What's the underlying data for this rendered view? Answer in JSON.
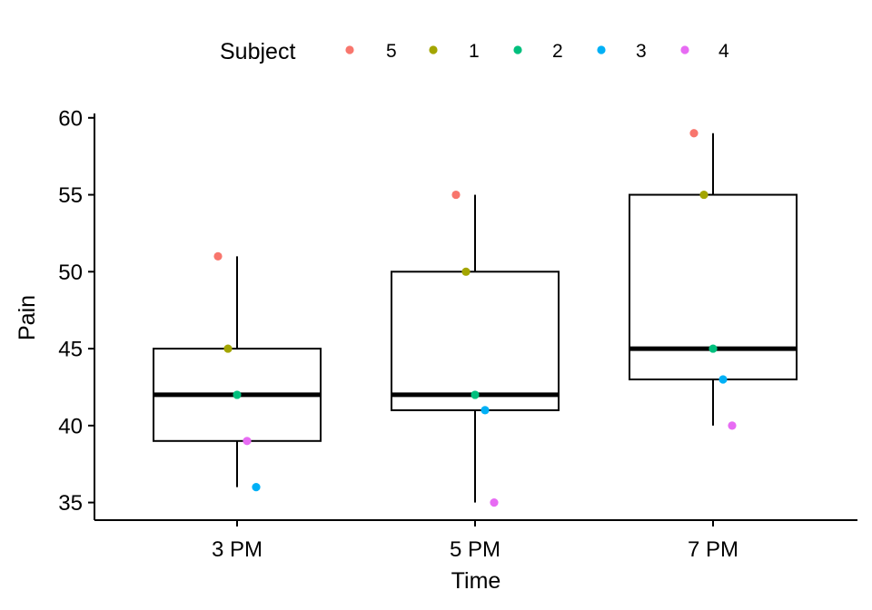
{
  "chart_data": {
    "type": "box",
    "xlabel": "Time",
    "ylabel": "Pain",
    "ylim": [
      33.9,
      60.5
    ],
    "yticks": [
      35,
      40,
      45,
      50,
      55,
      60
    ],
    "grid": false,
    "legend": {
      "title": "Subject",
      "position": "top",
      "entries": [
        {
          "label": "5",
          "color": "#F8766D"
        },
        {
          "label": "1",
          "color": "#A3A500"
        },
        {
          "label": "2",
          "color": "#00BF7D"
        },
        {
          "label": "3",
          "color": "#00B0F6"
        },
        {
          "label": "4",
          "color": "#E76BF3"
        }
      ]
    },
    "categories": [
      "3 PM",
      "5 PM",
      "7 PM"
    ],
    "boxes": [
      {
        "category": "3 PM",
        "whisker_low": 36,
        "q1": 39,
        "median": 42,
        "q3": 45,
        "whisker_high": 51
      },
      {
        "category": "5 PM",
        "whisker_low": 35,
        "q1": 41,
        "median": 42,
        "q3": 50,
        "whisker_high": 55
      },
      {
        "category": "7 PM",
        "whisker_low": 40,
        "q1": 43,
        "median": 45,
        "q3": 55,
        "whisker_high": 59
      }
    ],
    "points": [
      {
        "category": "3 PM",
        "subject": "5",
        "value": 51
      },
      {
        "category": "3 PM",
        "subject": "1",
        "value": 45
      },
      {
        "category": "3 PM",
        "subject": "2",
        "value": 42
      },
      {
        "category": "3 PM",
        "subject": "4",
        "value": 39
      },
      {
        "category": "3 PM",
        "subject": "3",
        "value": 36
      },
      {
        "category": "5 PM",
        "subject": "5",
        "value": 55
      },
      {
        "category": "5 PM",
        "subject": "1",
        "value": 50
      },
      {
        "category": "5 PM",
        "subject": "2",
        "value": 42
      },
      {
        "category": "5 PM",
        "subject": "3",
        "value": 41
      },
      {
        "category": "5 PM",
        "subject": "4",
        "value": 35
      },
      {
        "category": "7 PM",
        "subject": "5",
        "value": 59
      },
      {
        "category": "7 PM",
        "subject": "1",
        "value": 55
      },
      {
        "category": "7 PM",
        "subject": "2",
        "value": 45
      },
      {
        "category": "7 PM",
        "subject": "3",
        "value": 43
      },
      {
        "category": "7 PM",
        "subject": "4",
        "value": 40
      }
    ]
  }
}
